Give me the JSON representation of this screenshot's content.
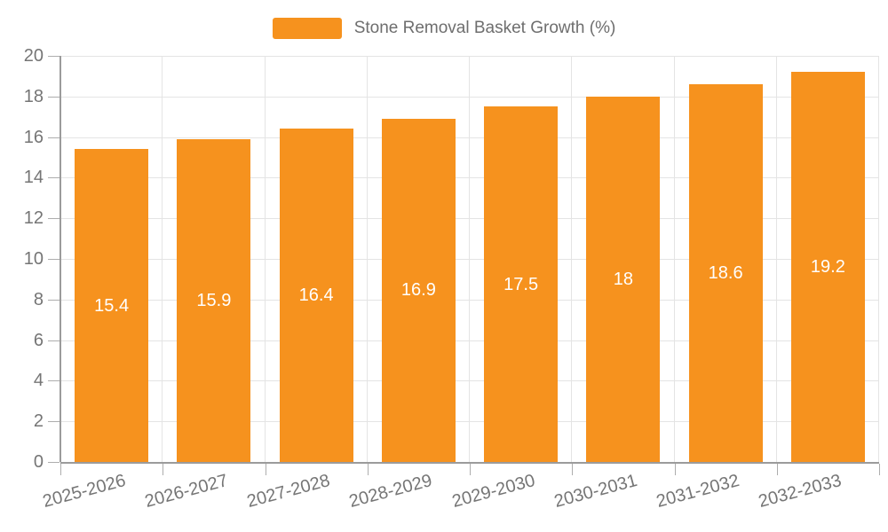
{
  "legend": {
    "label": "Stone Removal Basket Growth (%)"
  },
  "chart_data": {
    "type": "bar",
    "title": "",
    "series_name": "Stone Removal Basket Growth (%)",
    "categories": [
      "2025-2026",
      "2026-2027",
      "2027-2028",
      "2028-2029",
      "2029-2030",
      "2030-2031",
      "2031-2032",
      "2032-2033"
    ],
    "values": [
      15.4,
      15.9,
      16.4,
      16.9,
      17.5,
      18,
      18.6,
      19.2
    ],
    "value_labels": [
      "15.4",
      "15.9",
      "16.4",
      "16.9",
      "17.5",
      "18",
      "18.6",
      "19.2"
    ],
    "xlabel": "",
    "ylabel": "",
    "ylim": [
      0,
      20
    ],
    "ytick_step": 2,
    "ytick_labels": [
      "0",
      "2",
      "4",
      "6",
      "8",
      "10",
      "12",
      "14",
      "16",
      "18",
      "20"
    ],
    "grid": true,
    "legend_position": "top-center",
    "colors": {
      "bar": "#F6921E",
      "bar_value_label": "#FFFFFF",
      "axis_line": "#9B9B9B",
      "tick": "#ADADAD",
      "gridline": "#E4E4E4",
      "axis_text": "#757575",
      "legend_text": "#6E6E6E",
      "background": "#FFFFFF"
    }
  }
}
